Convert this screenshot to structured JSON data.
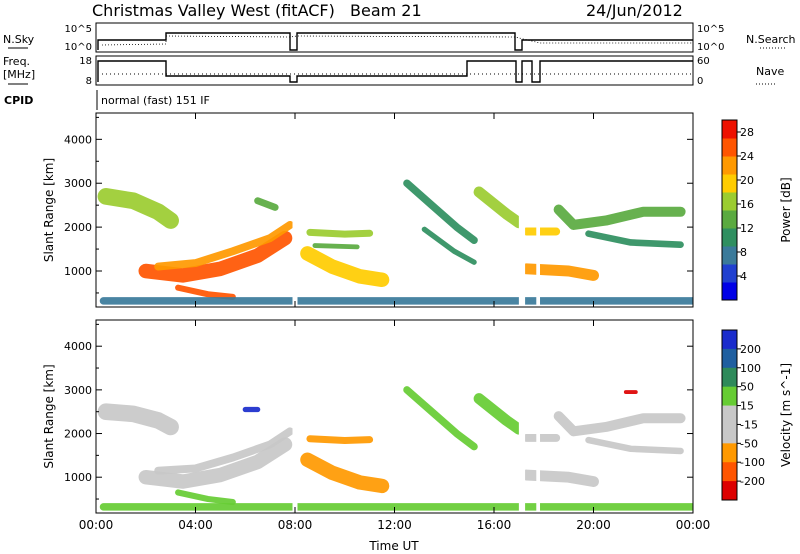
{
  "header": {
    "radar": "Christmas Valley West (fitACF)",
    "beam": "Beam 21",
    "date": "24/Jun/2012"
  },
  "strip": {
    "nsky_label": "N.Sky",
    "nsearch_label": "N.Search",
    "freq_label_1": "Freq.",
    "freq_label_2": "[MHz]",
    "nave_label": "Nave",
    "cpid_label": "CPID",
    "nsky_ticks": [
      "10^5",
      "10^0"
    ],
    "nsearch_ticks": [
      "10^5",
      "10^0"
    ],
    "freq_ticks": [
      "18",
      "8"
    ],
    "nave_ticks": [
      "60",
      "0"
    ],
    "cpid_text": "normal (fast) 151 IF"
  },
  "colors": {
    "power": [
      "#0000e6",
      "#2040d0",
      "#3a7a9a",
      "#2f8f60",
      "#5aaa40",
      "#9bcc30",
      "#ffcc00",
      "#ff9900",
      "#ff5500",
      "#ee1100"
    ],
    "velocity": [
      "#1a2ccc",
      "#1f5fa0",
      "#2e8a5a",
      "#66cc33",
      "#c8c8c8",
      "#c8c8c8",
      "#ff9900",
      "#ff5500",
      "#dd0000"
    ]
  },
  "chart_data": [
    {
      "type": "heatmap",
      "name": "power",
      "title": "",
      "xlabel": "Time UT",
      "ylabel": "Slant Range [km]",
      "xticks": [
        "00:00",
        "04:00",
        "08:00",
        "12:00",
        "16:00",
        "20:00",
        "00:00"
      ],
      "yticks": [
        1000,
        2000,
        3000,
        4000
      ],
      "xlim": [
        0,
        24
      ],
      "ylim": [
        180,
        4600
      ],
      "colorbar": {
        "label": "Power [dB]",
        "ticks": [
          28,
          24,
          20,
          16,
          12,
          8,
          4
        ],
        "range": [
          0,
          30
        ]
      },
      "bands": [
        {
          "points": [
            [
              0.4,
              2700
            ],
            [
              1.5,
              2600
            ],
            [
              2.5,
              2350
            ],
            [
              3.0,
              2150
            ]
          ],
          "width": 380,
          "value": 16
        },
        {
          "points": [
            [
              2.0,
              1000
            ],
            [
              3.5,
              900
            ],
            [
              5.0,
              1050
            ],
            [
              6.5,
              1350
            ],
            [
              7.6,
              1750
            ]
          ],
          "width": 330,
          "value": 26
        },
        {
          "points": [
            [
              2.5,
              1100
            ],
            [
              4.0,
              1180
            ],
            [
              5.5,
              1450
            ],
            [
              7.0,
              1750
            ],
            [
              7.8,
              2050
            ]
          ],
          "width": 180,
          "value": 22
        },
        {
          "points": [
            [
              3.3,
              620
            ],
            [
              4.5,
              470
            ],
            [
              5.5,
              410
            ]
          ],
          "width": 140,
          "value": 24
        },
        {
          "points": [
            [
              6.5,
              2600
            ],
            [
              7.2,
              2450
            ]
          ],
          "width": 160,
          "value": 14
        },
        {
          "points": [
            [
              8.5,
              1400
            ],
            [
              9.5,
              1100
            ],
            [
              10.6,
              880
            ],
            [
              11.5,
              800
            ]
          ],
          "width": 330,
          "value": 18
        },
        {
          "points": [
            [
              8.6,
              1880
            ],
            [
              10.0,
              1840
            ],
            [
              11.0,
              1860
            ]
          ],
          "width": 160,
          "value": 16
        },
        {
          "points": [
            [
              8.8,
              1580
            ],
            [
              10.5,
              1550
            ]
          ],
          "width": 110,
          "value": 12
        },
        {
          "points": [
            [
              12.5,
              3000
            ],
            [
              13.5,
              2500
            ],
            [
              14.5,
              2000
            ],
            [
              15.2,
              1700
            ]
          ],
          "width": 170,
          "value": 10
        },
        {
          "points": [
            [
              13.2,
              1950
            ],
            [
              14.4,
              1450
            ],
            [
              15.2,
              1200
            ]
          ],
          "width": 120,
          "value": 10
        },
        {
          "points": [
            [
              15.4,
              2800
            ],
            [
              16.5,
              2300
            ],
            [
              17.0,
              2100
            ]
          ],
          "width": 250,
          "value": 17
        },
        {
          "points": [
            [
              17.3,
              1900
            ],
            [
              18.5,
              1900
            ]
          ],
          "width": 180,
          "value": 19
        },
        {
          "points": [
            [
              17.3,
              1050
            ],
            [
              19.0,
              1000
            ],
            [
              20.0,
              900
            ]
          ],
          "width": 250,
          "value": 22
        },
        {
          "points": [
            [
              18.6,
              2400
            ],
            [
              19.2,
              2050
            ],
            [
              20.5,
              2150
            ],
            [
              22.0,
              2350
            ],
            [
              23.5,
              2350
            ]
          ],
          "width": 230,
          "value": 14
        },
        {
          "points": [
            [
              19.8,
              1850
            ],
            [
              21.5,
              1650
            ],
            [
              23.5,
              1600
            ]
          ],
          "width": 150,
          "value": 9
        },
        {
          "points": [
            [
              0.3,
              320
            ],
            [
              24.0,
              320
            ]
          ],
          "width": 170,
          "value": 6
        }
      ]
    },
    {
      "type": "heatmap",
      "name": "velocity",
      "title": "",
      "xlabel": "Time UT",
      "ylabel": "Slant Range [km]",
      "xticks": [
        "00:00",
        "04:00",
        "08:00",
        "12:00",
        "16:00",
        "20:00",
        "00:00"
      ],
      "yticks": [
        1000,
        2000,
        3000,
        4000
      ],
      "xlim": [
        0,
        24
      ],
      "ylim": [
        180,
        4600
      ],
      "colorbar": {
        "label": "Velocity [m s^-1]",
        "ticks": [
          200,
          100,
          50,
          15,
          -15,
          -50,
          -100,
          -200
        ]
      },
      "bands": [
        {
          "points": [
            [
              0.4,
              2500
            ],
            [
              1.5,
              2450
            ],
            [
              2.5,
              2300
            ],
            [
              3.0,
              2150
            ]
          ],
          "width": 380,
          "value": 0
        },
        {
          "points": [
            [
              2.0,
              1000
            ],
            [
              3.5,
              900
            ],
            [
              5.0,
              1050
            ],
            [
              6.5,
              1350
            ],
            [
              7.6,
              1750
            ]
          ],
          "width": 330,
          "value": 0
        },
        {
          "points": [
            [
              2.5,
              1150
            ],
            [
              4.0,
              1200
            ],
            [
              5.5,
              1450
            ],
            [
              7.0,
              1750
            ],
            [
              7.8,
              2050
            ]
          ],
          "width": 180,
          "value": 0
        },
        {
          "points": [
            [
              3.3,
              650
            ],
            [
              4.5,
              500
            ],
            [
              5.5,
              430
            ]
          ],
          "width": 140,
          "value": 30
        },
        {
          "points": [
            [
              8.5,
              1400
            ],
            [
              9.5,
              1100
            ],
            [
              10.6,
              880
            ],
            [
              11.5,
              800
            ]
          ],
          "width": 330,
          "value": -40
        },
        {
          "points": [
            [
              8.6,
              1880
            ],
            [
              10.0,
              1840
            ],
            [
              11.0,
              1860
            ]
          ],
          "width": 160,
          "value": -40
        },
        {
          "points": [
            [
              12.5,
              3000
            ],
            [
              13.5,
              2500
            ],
            [
              14.5,
              2000
            ],
            [
              15.2,
              1700
            ]
          ],
          "width": 170,
          "value": 30
        },
        {
          "points": [
            [
              15.4,
              2800
            ],
            [
              16.5,
              2300
            ],
            [
              17.0,
              2100
            ]
          ],
          "width": 250,
          "value": 30
        },
        {
          "points": [
            [
              17.3,
              1900
            ],
            [
              18.5,
              1900
            ]
          ],
          "width": 180,
          "value": 0
        },
        {
          "points": [
            [
              17.3,
              1050
            ],
            [
              19.0,
              1000
            ],
            [
              20.0,
              900
            ]
          ],
          "width": 250,
          "value": 0
        },
        {
          "points": [
            [
              18.6,
              2400
            ],
            [
              19.2,
              2050
            ],
            [
              20.5,
              2150
            ],
            [
              22.0,
              2350
            ],
            [
              23.5,
              2350
            ]
          ],
          "width": 230,
          "value": 0
        },
        {
          "points": [
            [
              19.8,
              1850
            ],
            [
              21.5,
              1650
            ],
            [
              23.5,
              1600
            ]
          ],
          "width": 150,
          "value": 0
        },
        {
          "points": [
            [
              0.3,
              320
            ],
            [
              24.0,
              320
            ]
          ],
          "width": 170,
          "value": 30
        },
        {
          "points": [
            [
              6.0,
              2550
            ],
            [
              6.5,
              2550
            ]
          ],
          "width": 120,
          "value": 180
        },
        {
          "points": [
            [
              21.3,
              2950
            ],
            [
              21.7,
              2950
            ]
          ],
          "width": 90,
          "value": -210
        }
      ]
    }
  ]
}
